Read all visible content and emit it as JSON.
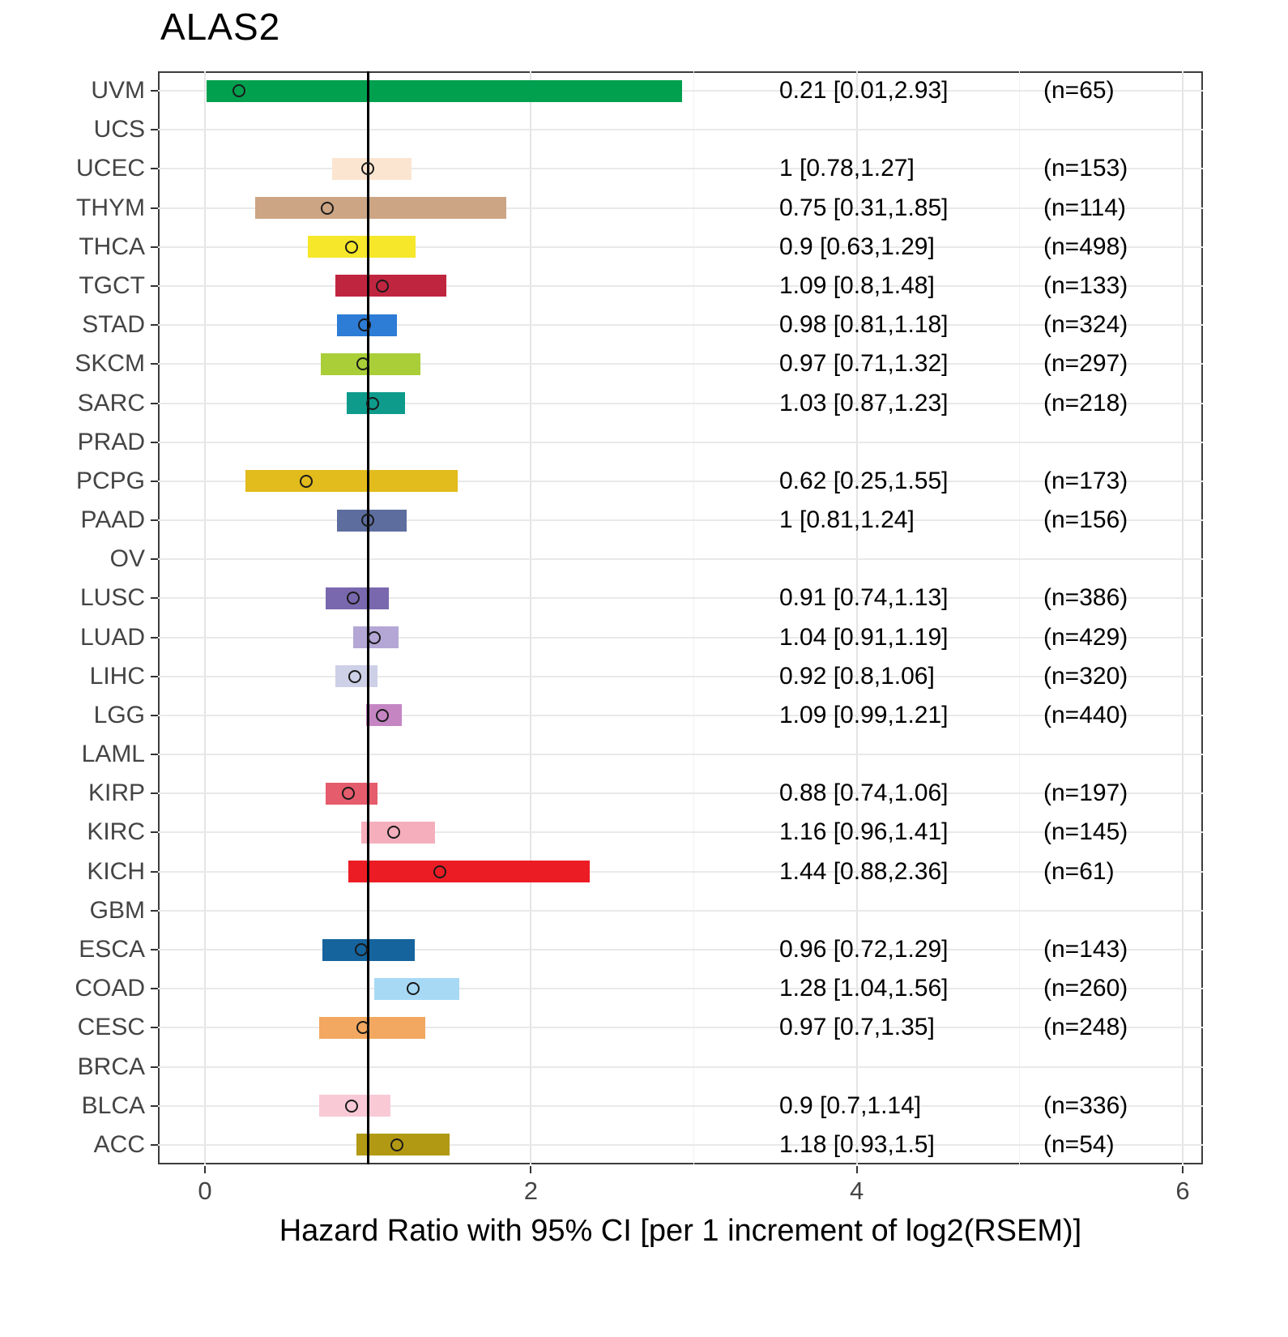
{
  "title": "ALAS2",
  "xlabel": "Hazard Ratio with 95% CI [per 1 increment of log2(RSEM)]",
  "colors": {
    "reference_line": "#000000",
    "panel_border": "#3c3c3c",
    "gridline": "#e9e9e9",
    "point_outline": "#1a1a1a"
  },
  "chart_data": {
    "type": "forest",
    "xlim": [
      -0.29,
      6.13
    ],
    "ref_line": 1,
    "grid": true,
    "x_ticks": [
      {
        "value": 0,
        "label": "0"
      },
      {
        "value": 2,
        "label": "2"
      },
      {
        "value": 4,
        "label": "4"
      },
      {
        "value": 6,
        "label": "6"
      }
    ],
    "x_minor": [
      1,
      3,
      5
    ],
    "rows": [
      {
        "label": "UVM",
        "hr": 0.21,
        "lo": 0.01,
        "hi": 2.93,
        "n": 65,
        "hr_text": "0.21 [0.01,2.93]",
        "n_text": "(n=65)",
        "color": "#00A04E"
      },
      {
        "label": "UCS",
        "hr": null,
        "lo": null,
        "hi": null,
        "n": null,
        "hr_text": "",
        "n_text": "",
        "color": null
      },
      {
        "label": "UCEC",
        "hr": 1,
        "lo": 0.78,
        "hi": 1.27,
        "n": 153,
        "hr_text": "1 [0.78,1.27]",
        "n_text": "(n=153)",
        "color": "#FBE5D0"
      },
      {
        "label": "THYM",
        "hr": 0.75,
        "lo": 0.31,
        "hi": 1.85,
        "n": 114,
        "hr_text": "0.75 [0.31,1.85]",
        "n_text": "(n=114)",
        "color": "#CCA584"
      },
      {
        "label": "THCA",
        "hr": 0.9,
        "lo": 0.63,
        "hi": 1.29,
        "n": 498,
        "hr_text": "0.9 [0.63,1.29]",
        "n_text": "(n=498)",
        "color": "#F6E72B"
      },
      {
        "label": "TGCT",
        "hr": 1.09,
        "lo": 0.8,
        "hi": 1.48,
        "n": 133,
        "hr_text": "1.09 [0.8,1.48]",
        "n_text": "(n=133)",
        "color": "#C0253F"
      },
      {
        "label": "STAD",
        "hr": 0.98,
        "lo": 0.81,
        "hi": 1.18,
        "n": 324,
        "hr_text": "0.98 [0.81,1.18]",
        "n_text": "(n=324)",
        "color": "#2D7CD6"
      },
      {
        "label": "SKCM",
        "hr": 0.97,
        "lo": 0.71,
        "hi": 1.32,
        "n": 297,
        "hr_text": "0.97 [0.71,1.32]",
        "n_text": "(n=297)",
        "color": "#A9CE38"
      },
      {
        "label": "SARC",
        "hr": 1.03,
        "lo": 0.87,
        "hi": 1.23,
        "n": 218,
        "hr_text": "1.03 [0.87,1.23]",
        "n_text": "(n=218)",
        "color": "#0E9B8C"
      },
      {
        "label": "PRAD",
        "hr": null,
        "lo": null,
        "hi": null,
        "n": null,
        "hr_text": "",
        "n_text": "",
        "color": null
      },
      {
        "label": "PCPG",
        "hr": 0.62,
        "lo": 0.25,
        "hi": 1.55,
        "n": 173,
        "hr_text": "0.62 [0.25,1.55]",
        "n_text": "(n=173)",
        "color": "#E2BB1C"
      },
      {
        "label": "PAAD",
        "hr": 1,
        "lo": 0.81,
        "hi": 1.24,
        "n": 156,
        "hr_text": "1 [0.81,1.24]",
        "n_text": "(n=156)",
        "color": "#5D6D9E"
      },
      {
        "label": "OV",
        "hr": null,
        "lo": null,
        "hi": null,
        "n": null,
        "hr_text": "",
        "n_text": "",
        "color": null
      },
      {
        "label": "LUSC",
        "hr": 0.91,
        "lo": 0.74,
        "hi": 1.13,
        "n": 386,
        "hr_text": "0.91 [0.74,1.13]",
        "n_text": "(n=386)",
        "color": "#7A68AE"
      },
      {
        "label": "LUAD",
        "hr": 1.04,
        "lo": 0.91,
        "hi": 1.19,
        "n": 429,
        "hr_text": "1.04 [0.91,1.19]",
        "n_text": "(n=429)",
        "color": "#B4A7D5"
      },
      {
        "label": "LIHC",
        "hr": 0.92,
        "lo": 0.8,
        "hi": 1.06,
        "n": 320,
        "hr_text": "0.92 [0.8,1.06]",
        "n_text": "(n=320)",
        "color": "#CDD0E6"
      },
      {
        "label": "LGG",
        "hr": 1.09,
        "lo": 0.99,
        "hi": 1.21,
        "n": 440,
        "hr_text": "1.09 [0.99,1.21]",
        "n_text": "(n=440)",
        "color": "#C585C3"
      },
      {
        "label": "LAML",
        "hr": null,
        "lo": null,
        "hi": null,
        "n": null,
        "hr_text": "",
        "n_text": "",
        "color": null
      },
      {
        "label": "KIRP",
        "hr": 0.88,
        "lo": 0.74,
        "hi": 1.06,
        "n": 197,
        "hr_text": "0.88 [0.74,1.06]",
        "n_text": "(n=197)",
        "color": "#E55C6C"
      },
      {
        "label": "KIRC",
        "hr": 1.16,
        "lo": 0.96,
        "hi": 1.41,
        "n": 145,
        "hr_text": "1.16 [0.96,1.41]",
        "n_text": "(n=145)",
        "color": "#F5AEBC"
      },
      {
        "label": "KICH",
        "hr": 1.44,
        "lo": 0.88,
        "hi": 2.36,
        "n": 61,
        "hr_text": "1.44 [0.88,2.36]",
        "n_text": "(n=61)",
        "color": "#EC1C24"
      },
      {
        "label": "GBM",
        "hr": null,
        "lo": null,
        "hi": null,
        "n": null,
        "hr_text": "",
        "n_text": "",
        "color": null
      },
      {
        "label": "ESCA",
        "hr": 0.96,
        "lo": 0.72,
        "hi": 1.29,
        "n": 143,
        "hr_text": "0.96 [0.72,1.29]",
        "n_text": "(n=143)",
        "color": "#16649E"
      },
      {
        "label": "COAD",
        "hr": 1.28,
        "lo": 1.04,
        "hi": 1.56,
        "n": 260,
        "hr_text": "1.28 [1.04,1.56]",
        "n_text": "(n=260)",
        "color": "#A7D9F5"
      },
      {
        "label": "CESC",
        "hr": 0.97,
        "lo": 0.7,
        "hi": 1.35,
        "n": 248,
        "hr_text": "0.97 [0.7,1.35]",
        "n_text": "(n=248)",
        "color": "#F2A860"
      },
      {
        "label": "BRCA",
        "hr": null,
        "lo": null,
        "hi": null,
        "n": null,
        "hr_text": "",
        "n_text": "",
        "color": null
      },
      {
        "label": "BLCA",
        "hr": 0.9,
        "lo": 0.7,
        "hi": 1.14,
        "n": 336,
        "hr_text": "0.9 [0.7,1.14]",
        "n_text": "(n=336)",
        "color": "#F9CAD6"
      },
      {
        "label": "ACC",
        "hr": 1.18,
        "lo": 0.93,
        "hi": 1.5,
        "n": 54,
        "hr_text": "1.18 [0.93,1.5]",
        "n_text": "(n=54)",
        "color": "#B29914"
      }
    ]
  }
}
